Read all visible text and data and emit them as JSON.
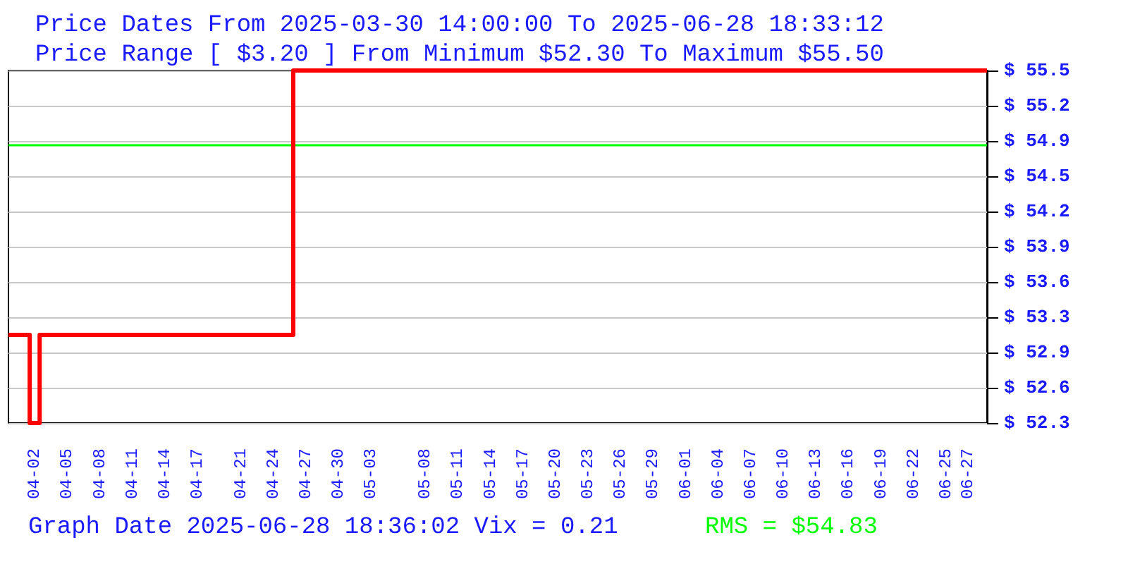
{
  "chart_data": {
    "type": "step",
    "title": "Price Dates From 2025-03-30 14:00:00 To 2025-06-28 18:33:12",
    "subtitle": "Price Range [ $3.20 ] From Minimum $52.30 To Maximum $55.50",
    "annotations": [
      "Graph Date 2025-06-28 18:36:02 Vix = 0.21"
    ],
    "x": [
      "2025-03-30T14:00",
      "2025-04-01T13:00",
      "2025-04-02T11:00",
      "2025-04-25T20:00",
      "2025-06-28T18:33"
    ],
    "series": [
      {
        "color": "#ff0000",
        "values": [
          53.1,
          52.3,
          53.1,
          55.5,
          55.5
        ]
      }
    ],
    "ref_lines": [
      {
        "axis": "y",
        "value": 54.83,
        "label": "RMS = $54.83",
        "color": "#00ff00"
      }
    ],
    "xlim": [
      "2025-03-30T14:00",
      "2025-06-28T18:33"
    ],
    "xticks": [
      {
        "value": "2025-04-02",
        "label": "04-02"
      },
      {
        "value": "2025-04-05",
        "label": "04-05"
      },
      {
        "value": "2025-04-08",
        "label": "04-08"
      },
      {
        "value": "2025-04-11",
        "label": "04-11"
      },
      {
        "value": "2025-04-14",
        "label": "04-14"
      },
      {
        "value": "2025-04-17",
        "label": "04-17"
      },
      {
        "value": "2025-04-21",
        "label": "04-21"
      },
      {
        "value": "2025-04-24",
        "label": "04-24"
      },
      {
        "value": "2025-04-27",
        "label": "04-27"
      },
      {
        "value": "2025-04-30",
        "label": "04-30"
      },
      {
        "value": "2025-05-03",
        "label": "05-03"
      },
      {
        "value": "2025-05-08",
        "label": "05-08"
      },
      {
        "value": "2025-05-11",
        "label": "05-11"
      },
      {
        "value": "2025-05-14",
        "label": "05-14"
      },
      {
        "value": "2025-05-17",
        "label": "05-17"
      },
      {
        "value": "2025-05-20",
        "label": "05-20"
      },
      {
        "value": "2025-05-23",
        "label": "05-23"
      },
      {
        "value": "2025-05-26",
        "label": "05-26"
      },
      {
        "value": "2025-05-29",
        "label": "05-29"
      },
      {
        "value": "2025-06-01",
        "label": "06-01"
      },
      {
        "value": "2025-06-04",
        "label": "06-04"
      },
      {
        "value": "2025-06-07",
        "label": "06-07"
      },
      {
        "value": "2025-06-10",
        "label": "06-10"
      },
      {
        "value": "2025-06-13",
        "label": "06-13"
      },
      {
        "value": "2025-06-16",
        "label": "06-16"
      },
      {
        "value": "2025-06-19",
        "label": "06-19"
      },
      {
        "value": "2025-06-22",
        "label": "06-22"
      },
      {
        "value": "2025-06-25",
        "label": "06-25"
      },
      {
        "value": "2025-06-27",
        "label": "06-27"
      }
    ],
    "ylim": [
      52.3,
      55.5
    ],
    "yticks": [
      {
        "value": 52.3,
        "label": "$ 52.3"
      },
      {
        "value": 52.62,
        "label": "$ 52.6"
      },
      {
        "value": 52.94,
        "label": "$ 52.9"
      },
      {
        "value": 53.26,
        "label": "$ 53.3"
      },
      {
        "value": 53.58,
        "label": "$ 53.6"
      },
      {
        "value": 53.9,
        "label": "$ 53.9"
      },
      {
        "value": 54.22,
        "label": "$ 54.2"
      },
      {
        "value": 54.54,
        "label": "$ 54.5"
      },
      {
        "value": 54.86,
        "label": "$ 54.9"
      },
      {
        "value": 55.18,
        "label": "$ 55.2"
      },
      {
        "value": 55.5,
        "label": "$ 55.5"
      }
    ],
    "grid": "y",
    "marker": "none",
    "line_style": "solid"
  }
}
